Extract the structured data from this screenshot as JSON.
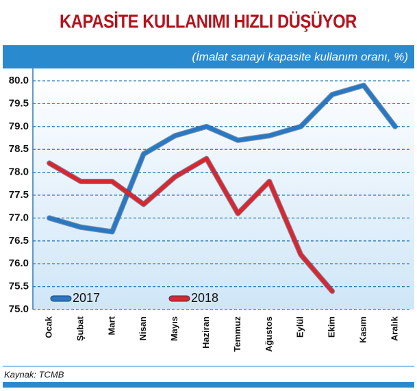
{
  "chart_data": {
    "type": "line",
    "title": "KAPASİTE KULLANIMI HIZLI DÜŞÜYOR",
    "subtitle": "(İmalat sanayi kapasite kullanım oranı, %)",
    "source": "Kaynak: TCMB",
    "categories": [
      "Ocak",
      "Şubat",
      "Mart",
      "Nisan",
      "Mayıs",
      "Haziran",
      "Temmuz",
      "Ağustos",
      "Eylül",
      "Ekim",
      "Kasım",
      "Aralık"
    ],
    "series": [
      {
        "name": "2017",
        "color": "#2a78c2",
        "values": [
          77.0,
          76.8,
          76.7,
          78.4,
          78.8,
          79.0,
          78.7,
          78.8,
          79.0,
          79.7,
          79.9,
          79.0
        ]
      },
      {
        "name": "2018",
        "color": "#d7282f",
        "values": [
          78.2,
          77.8,
          77.8,
          77.3,
          77.9,
          78.3,
          77.1,
          77.8,
          76.2,
          75.4,
          null,
          null
        ]
      }
    ],
    "ylim": [
      75.0,
      80.0
    ],
    "yticks": [
      {
        "value": 75.0,
        "label": "75.0"
      },
      75.5,
      {
        "value": 76.0,
        "label": "76.0"
      },
      76.5,
      {
        "value": 77.0,
        "label": "77.0"
      },
      77.5,
      {
        "value": 78.0,
        "label": "78.0"
      },
      78.5,
      {
        "value": 79.0,
        "label": "79.0"
      },
      79.5,
      {
        "value": 80.0,
        "label": "80.0"
      }
    ],
    "grid": true,
    "legend": "lower left"
  }
}
